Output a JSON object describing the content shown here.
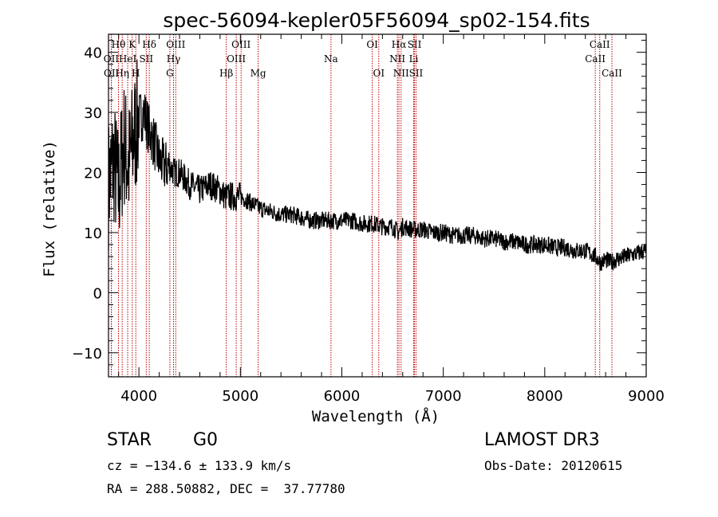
{
  "chart_data": {
    "type": "line",
    "title": "spec-56094-kepler05F56094_sp02-154.fits",
    "xlabel": "Wavelength (Å)",
    "ylabel": "Flux (relative)",
    "xlim": [
      3700,
      9000
    ],
    "ylim": [
      -14,
      43
    ],
    "xticks": [
      4000,
      5000,
      6000,
      7000,
      8000,
      9000
    ],
    "yticks": [
      -10,
      0,
      10,
      20,
      30,
      40
    ],
    "series": [
      {
        "name": "spectrum",
        "x": [
          3700,
          3750,
          3800,
          3850,
          3900,
          3950,
          4000,
          4050,
          4100,
          4150,
          4200,
          4250,
          4300,
          4350,
          4400,
          4500,
          4600,
          4700,
          4800,
          4850,
          4900,
          5000,
          5100,
          5200,
          5300,
          5400,
          5500,
          5600,
          5700,
          5800,
          5900,
          6000,
          6100,
          6200,
          6300,
          6400,
          6500,
          6560,
          6600,
          6700,
          6800,
          6900,
          7000,
          7100,
          7200,
          7300,
          7400,
          7500,
          7600,
          7700,
          7800,
          7900,
          8000,
          8100,
          8200,
          8300,
          8400,
          8500,
          8550,
          8600,
          8650,
          8700,
          8800,
          8900,
          9000
        ],
        "y": [
          18,
          22,
          17,
          25,
          21,
          26,
          29,
          30,
          27,
          25,
          22,
          21,
          21,
          20,
          20,
          18,
          17,
          18,
          17,
          16,
          16,
          16,
          15,
          14,
          13.5,
          13,
          13,
          12.5,
          12,
          12,
          12,
          12,
          12,
          11.5,
          11.5,
          11,
          11,
          10,
          11,
          10.5,
          10.5,
          10,
          10,
          9.5,
          9.5,
          9.5,
          9,
          9,
          8.5,
          8.5,
          8,
          8,
          8,
          7.5,
          7.5,
          7,
          7,
          6,
          5,
          5.5,
          5,
          5.5,
          6,
          6.5,
          7
        ]
      }
    ],
    "spectral_lines": [
      {
        "label": "Hθ",
        "x": 3798,
        "row": 0
      },
      {
        "label": "K",
        "x": 3934,
        "row": 0
      },
      {
        "label": "Hδ",
        "x": 4102,
        "row": 0
      },
      {
        "label": "OIII",
        "x": 4363,
        "row": 0
      },
      {
        "label": "OIII",
        "x": 5007,
        "row": 0
      },
      {
        "label": "OI",
        "x": 6300,
        "row": 0
      },
      {
        "label": "Hα",
        "x": 6563,
        "row": 0
      },
      {
        "label": "SII",
        "x": 6716,
        "row": 0
      },
      {
        "label": "CaII",
        "x": 8542,
        "row": 0
      },
      {
        "label": "OII",
        "x": 3727,
        "row": 1
      },
      {
        "label": "HeI",
        "x": 3889,
        "row": 1
      },
      {
        "label": "SII",
        "x": 4072,
        "row": 1
      },
      {
        "label": "Hγ",
        "x": 4341,
        "row": 1
      },
      {
        "label": "OIII",
        "x": 4959,
        "row": 1
      },
      {
        "label": "Na",
        "x": 5893,
        "row": 1
      },
      {
        "label": "NII",
        "x": 6548,
        "row": 1
      },
      {
        "label": "Li",
        "x": 6708,
        "row": 1
      },
      {
        "label": "CaII",
        "x": 8498,
        "row": 1
      },
      {
        "label": "OII",
        "x": 3729,
        "row": 2
      },
      {
        "label": "Hη",
        "x": 3835,
        "row": 2
      },
      {
        "label": "H",
        "x": 3969,
        "row": 2
      },
      {
        "label": "G",
        "x": 4305,
        "row": 2
      },
      {
        "label": "Hβ",
        "x": 4861,
        "row": 2
      },
      {
        "label": "Mg",
        "x": 5175,
        "row": 2
      },
      {
        "label": "OI",
        "x": 6364,
        "row": 2
      },
      {
        "label": "NII",
        "x": 6584,
        "row": 2
      },
      {
        "label": "SII",
        "x": 6731,
        "row": 2
      },
      {
        "label": "CaII",
        "x": 8662,
        "row": 2
      }
    ],
    "line_color": "#c00000",
    "grid": false
  },
  "info": {
    "object_class": "STAR",
    "subclass": "G0",
    "survey": "LAMOST DR3",
    "cz": "cz = −134.6 ± 133.9 km/s",
    "obs_date": "Obs-Date: 20120615",
    "coords": "RA = 288.50882, DEC =  37.77780"
  }
}
